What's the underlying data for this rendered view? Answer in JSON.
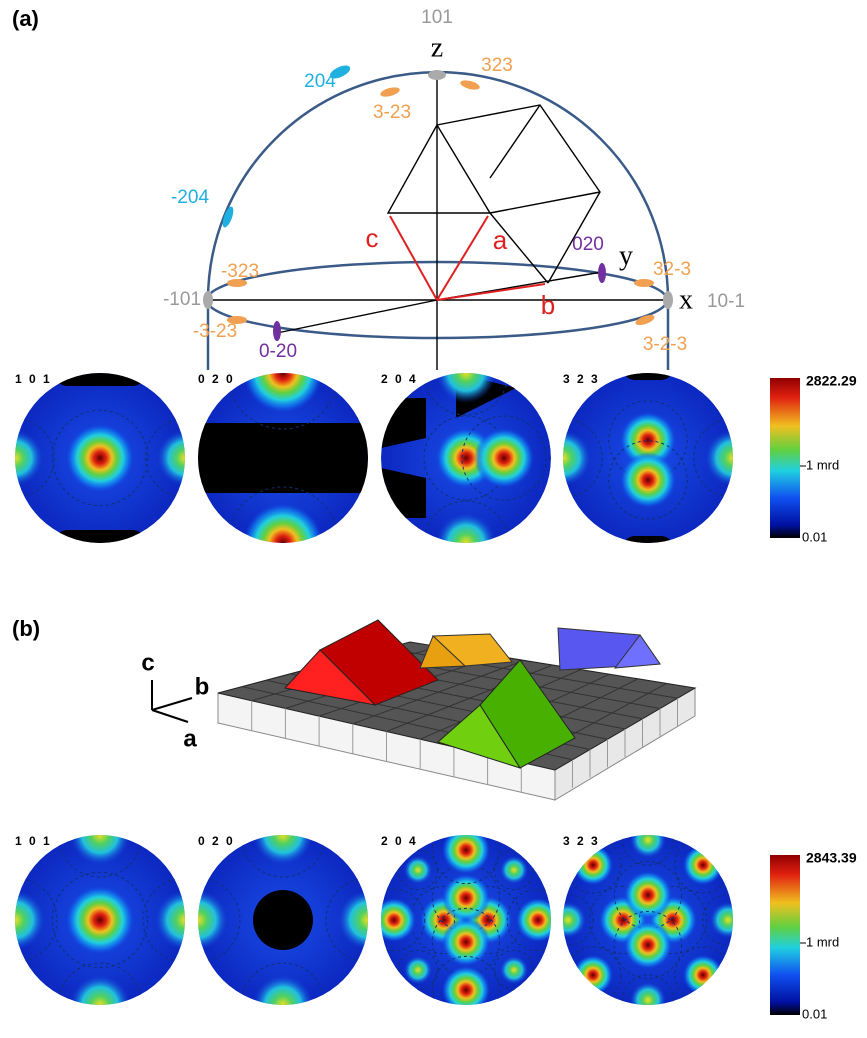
{
  "panel_a": {
    "label": "(a)",
    "sphere_labels": [
      "101",
      "z",
      "323",
      "204",
      "3-23",
      "-204",
      "c",
      "a",
      "020",
      "y",
      "-323",
      "32-3",
      "-101",
      "b",
      "x",
      "10-1",
      "-3-23",
      "0-20",
      "3-2-3"
    ],
    "pole_figures": [
      "1 0 1",
      "0 2 0",
      "2 0 4",
      "3 2 3"
    ],
    "colorbar": {
      "max": "2822.29",
      "mid": "1 mrd",
      "min": "0.01"
    }
  },
  "panel_b": {
    "label": "(b)",
    "axis_labels": [
      "c",
      "b",
      "a"
    ],
    "pole_figures": [
      "1 0 1",
      "0 2 0",
      "2 0 4",
      "3 2 3"
    ],
    "colorbar": {
      "max": "2843.39",
      "mid": "1 mrd",
      "min": "0.01"
    }
  }
}
